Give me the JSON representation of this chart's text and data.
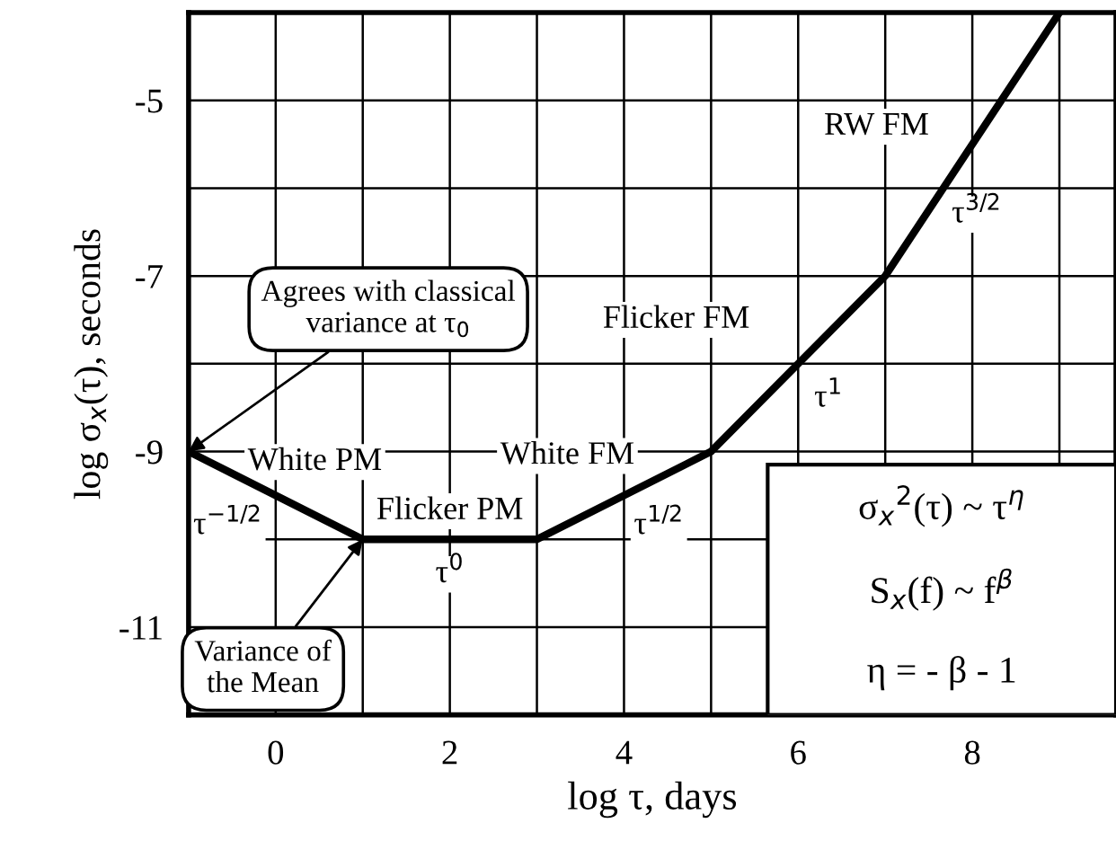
{
  "chart_data": {
    "type": "line",
    "xlabel": "log τ, days",
    "ylabel": "log σ$_{x}$(τ), seconds",
    "x": [
      -1,
      1,
      3,
      5,
      7,
      9
    ],
    "series": [
      {
        "color": "#000000",
        "values": [
          -9,
          -10,
          -10,
          -9,
          -7,
          -4
        ]
      }
    ],
    "xlim": [
      -1,
      9.65
    ],
    "ylim": [
      -12,
      -4
    ],
    "xticks": [
      0,
      {
        "value": 1,
        "label": null
      },
      2,
      {
        "value": 3,
        "label": null
      },
      4,
      {
        "value": 5,
        "label": null
      },
      6,
      {
        "value": 7,
        "label": null
      },
      8,
      {
        "value": 9,
        "label": null
      }
    ],
    "yticks": [
      -11,
      {
        "value": -10,
        "label": null
      },
      -9,
      {
        "value": -8,
        "label": null
      },
      -7,
      {
        "value": -6,
        "label": null
      },
      -5
    ],
    "grid": true,
    "marker": "none",
    "line_style": "solid",
    "annotations": [
      "White PM",
      "τ$^{−1/2}$",
      "Flicker PM",
      "τ$^{0}$",
      "White FM",
      "τ$^{1/2}$",
      "Flicker FM",
      "τ$^{1}$",
      "RW FM",
      "τ$^{3/2}$",
      {
        "text": "Agrees with classical\nvariance at τ$_{0}$",
        "x": -1,
        "y": -9
      },
      {
        "text": "Variance of\nthe Mean",
        "x": 1,
        "y": -10
      },
      "σ$_{x}$$^{2}$(τ) ~ τ$^{η}$",
      "S$_{x}$(f) ~ f$^{β}$",
      "η = - β - 1"
    ]
  }
}
